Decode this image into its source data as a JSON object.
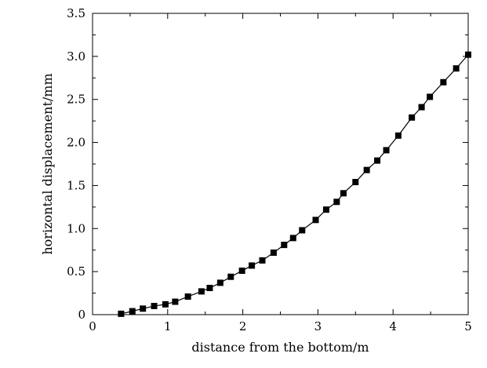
{
  "chart_data": {
    "type": "line",
    "xlabel": "distance from the bottom/m",
    "ylabel": "horizontal displacement/mm",
    "xlim": [
      0,
      5
    ],
    "ylim": [
      0,
      3.5
    ],
    "xticks": [
      0,
      1,
      2,
      3,
      4,
      5
    ],
    "xtick_labels": [
      "0",
      "1",
      "2",
      "3",
      "4",
      "5"
    ],
    "yticks": [
      0,
      0.5,
      1.0,
      1.5,
      2.0,
      2.5,
      3.0,
      3.5
    ],
    "ytick_labels": [
      "0",
      "0.5",
      "1.0",
      "1.5",
      "2.0",
      "2.5",
      "3.0",
      "3.5"
    ],
    "grid": false,
    "legend": "none",
    "colors": {
      "line": "#000000",
      "marker": "#000000",
      "axis": "#000000",
      "background": "#ffffff"
    },
    "marker": "square",
    "series": [
      {
        "x": [
          0.38,
          0.53,
          0.67,
          0.82,
          0.97,
          1.1,
          1.27,
          1.45,
          1.56,
          1.7,
          1.84,
          1.99,
          2.12,
          2.26,
          2.41,
          2.55,
          2.67,
          2.79,
          2.97,
          3.11,
          3.25,
          3.34,
          3.5,
          3.65,
          3.79,
          3.91,
          4.07,
          4.25,
          4.38,
          4.49,
          4.67,
          4.84,
          5.0
        ],
        "y": [
          0.01,
          0.04,
          0.07,
          0.1,
          0.12,
          0.15,
          0.21,
          0.27,
          0.31,
          0.37,
          0.44,
          0.51,
          0.57,
          0.63,
          0.72,
          0.81,
          0.89,
          0.98,
          1.1,
          1.22,
          1.31,
          1.41,
          1.54,
          1.68,
          1.79,
          1.91,
          2.08,
          2.29,
          2.41,
          2.53,
          2.7,
          2.86,
          3.02
        ]
      }
    ]
  }
}
